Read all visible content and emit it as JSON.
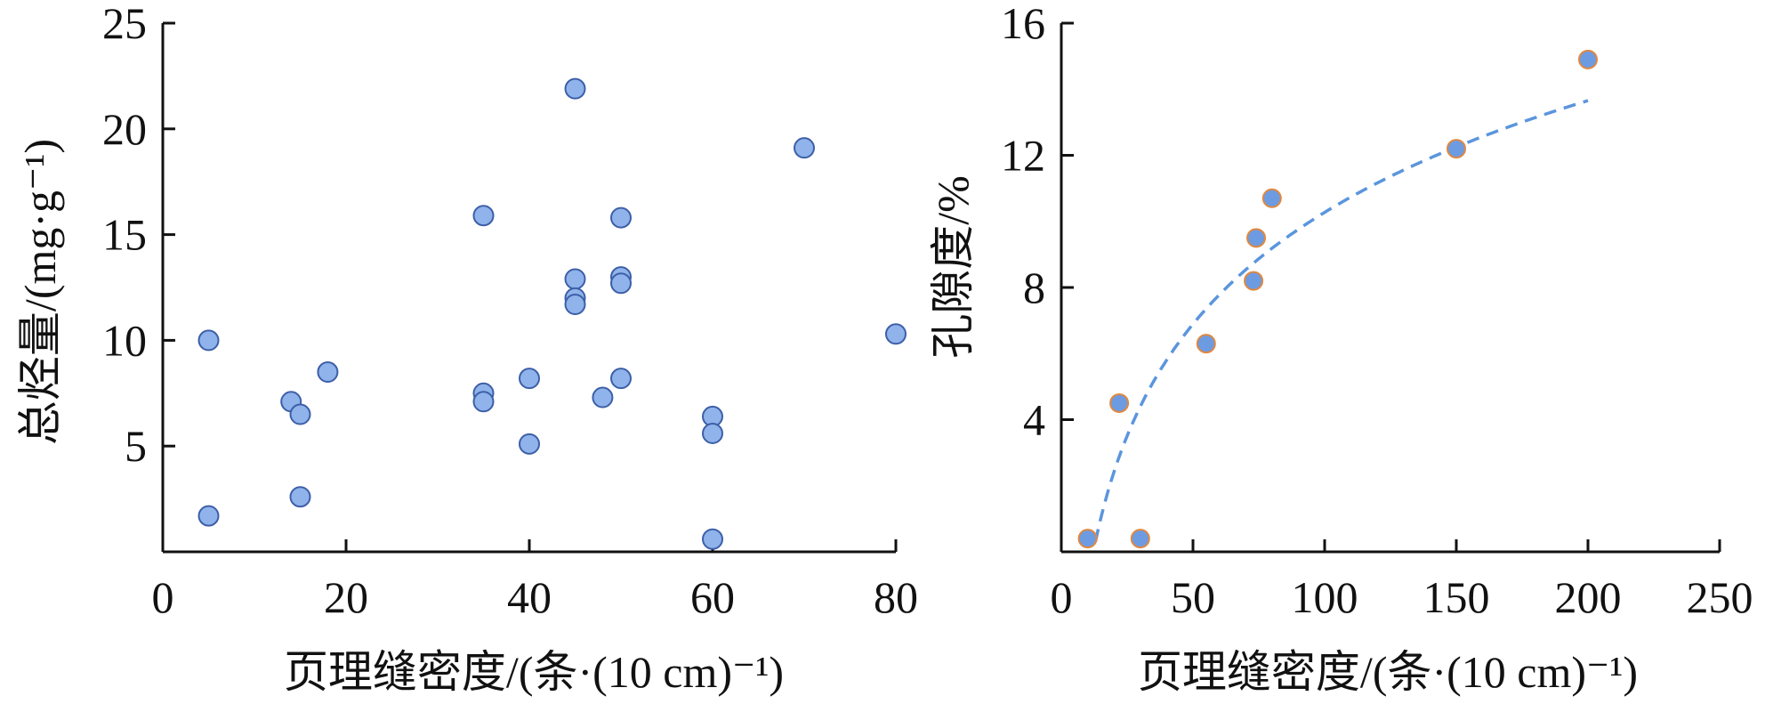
{
  "chart_data": [
    {
      "type": "scatter",
      "xlabel": "页理缝密度/(条·(10 cm)⁻¹)",
      "ylabel": "总烃量/(mg·g⁻¹)",
      "xlim": [
        0,
        80
      ],
      "ylim": [
        0,
        25
      ],
      "xticks": [
        0,
        20,
        40,
        60,
        80
      ],
      "yticks": [
        5,
        10,
        15,
        20,
        25
      ],
      "grid": false,
      "marker": {
        "fill": "#8fb3ea",
        "stroke": "#3d5fa8"
      },
      "points": [
        [
          5,
          10.0
        ],
        [
          5,
          1.7
        ],
        [
          14,
          7.1
        ],
        [
          15,
          6.5
        ],
        [
          15,
          2.6
        ],
        [
          18,
          8.5
        ],
        [
          35,
          15.9
        ],
        [
          35,
          7.5
        ],
        [
          35,
          7.1
        ],
        [
          40,
          8.2
        ],
        [
          40,
          5.1
        ],
        [
          45,
          21.9
        ],
        [
          45,
          12.9
        ],
        [
          45,
          12.0
        ],
        [
          45,
          11.7
        ],
        [
          48,
          7.3
        ],
        [
          50,
          15.8
        ],
        [
          50,
          13.0
        ],
        [
          50,
          12.7
        ],
        [
          50,
          8.2
        ],
        [
          60,
          6.4
        ],
        [
          60,
          5.6
        ],
        [
          60,
          0.6
        ],
        [
          70,
          19.1
        ],
        [
          80,
          10.3
        ]
      ]
    },
    {
      "type": "scatter",
      "xlabel": "页理缝密度/(条·(10 cm)⁻¹)",
      "ylabel": "孔隙度/%",
      "xlim": [
        0,
        250
      ],
      "ylim": [
        0,
        16
      ],
      "xticks": [
        0,
        50,
        100,
        150,
        200,
        250
      ],
      "yticks": [
        4,
        8,
        12,
        16
      ],
      "grid": false,
      "marker": {
        "fill": "#6c9be2",
        "stroke": "#e08840"
      },
      "points": [
        [
          10,
          0.4
        ],
        [
          22,
          4.5
        ],
        [
          30,
          0.4
        ],
        [
          55,
          6.3
        ],
        [
          73,
          8.2
        ],
        [
          74,
          9.5
        ],
        [
          80,
          10.7
        ],
        [
          150,
          12.2
        ],
        [
          200,
          14.9
        ]
      ],
      "trend": {
        "form": "logarithmic",
        "style": "dashed",
        "color": "#5b95dd",
        "x_range": [
          13,
          200
        ],
        "a": 4.88,
        "b": -12.2
      }
    }
  ]
}
